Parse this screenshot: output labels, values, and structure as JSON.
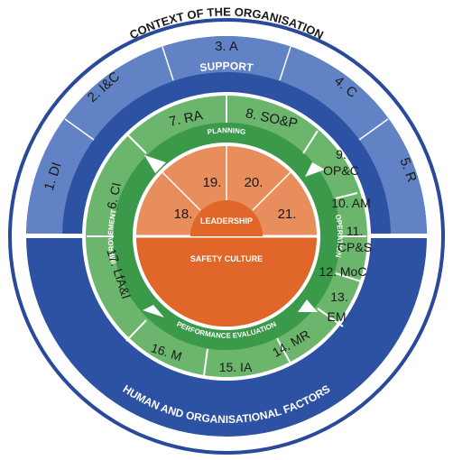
{
  "titles": {
    "context": "CONTEXT OF THE ORGANISATION",
    "support": "SUPPORT",
    "human_factors": "HUMAN AND ORGANISATIONAL FACTORS",
    "planning": "PLANNING",
    "operation": "OPERATION",
    "improvement": "IMPROVEMENT",
    "performance": "PERFORMANCE EVALUATION",
    "leadership": "LEADERSHIP",
    "safety_culture": "SAFETY CULTURE"
  },
  "outer_segments": {
    "di": "1. DI",
    "ic": "2. I&C",
    "a": "3. A",
    "c": "4. C",
    "r": "5. R"
  },
  "green_segments": {
    "ra": "7. RA",
    "sop": "8. SO&P",
    "opc_1": "9.",
    "opc_2": "OP&C",
    "am": "10. AM",
    "cps_1": "11.",
    "cps_2": "CP&S",
    "moc": "12. MoC",
    "em_1": "13.",
    "em_2": "EM",
    "mr": "14. MR",
    "ia": "15. IA",
    "m": "16. M",
    "lfai": "17. LfA&I",
    "ci": "6. CI"
  },
  "core_segments": {
    "s18": "18.",
    "s19": "19.",
    "s20": "20.",
    "s21": "21."
  },
  "colors": {
    "light_blue": "#5d7fc3",
    "dark_blue": "#2e52a3",
    "outer_ring": "#29499a",
    "green_light": "#6cb56c",
    "green_band": "#3a9a4a",
    "orange_light": "#e88d5c",
    "orange_dark": "#e0662a"
  }
}
